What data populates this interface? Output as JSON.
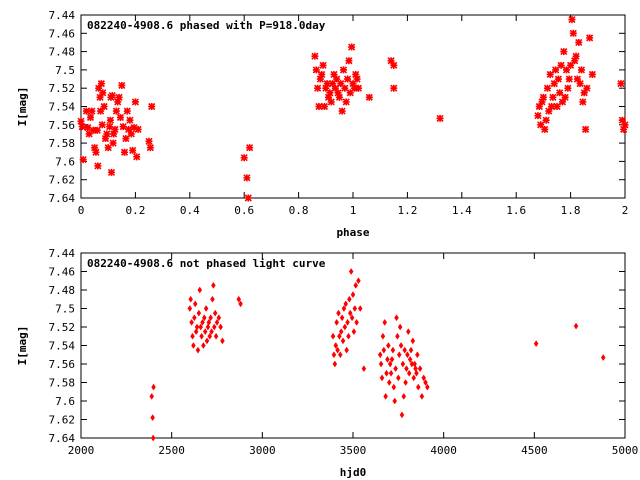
{
  "chart_data": [
    {
      "type": "scatter",
      "title": "082240-4908.6 phased with P=918.0day",
      "xlabel": "phase",
      "ylabel": "I[mag]",
      "xlim": [
        0,
        2
      ],
      "ylim": [
        7.64,
        7.44
      ],
      "y_inverted": true,
      "xticks": [
        "0",
        "0.2",
        "0.4",
        "0.6",
        "0.8",
        "1",
        "1.2",
        "1.4",
        "1.6",
        "1.8",
        "2"
      ],
      "yticks": [
        "7.44",
        "7.46",
        "7.48",
        "7.5",
        "7.52",
        "7.54",
        "7.56",
        "7.58",
        "7.6",
        "7.62",
        "7.64"
      ],
      "grid": false,
      "legend": "none",
      "marker": "cross",
      "color": "#ff0000",
      "points": [
        [
          0.0,
          7.556
        ],
        [
          0.004,
          7.562
        ],
        [
          0.008,
          7.598
        ],
        [
          0.02,
          7.545
        ],
        [
          0.025,
          7.563
        ],
        [
          0.03,
          7.57
        ],
        [
          0.035,
          7.552
        ],
        [
          0.04,
          7.545
        ],
        [
          0.045,
          7.566
        ],
        [
          0.05,
          7.585
        ],
        [
          0.055,
          7.59
        ],
        [
          0.06,
          7.566
        ],
        [
          0.062,
          7.605
        ],
        [
          0.065,
          7.52
        ],
        [
          0.07,
          7.53
        ],
        [
          0.072,
          7.545
        ],
        [
          0.075,
          7.515
        ],
        [
          0.078,
          7.56
        ],
        [
          0.08,
          7.525
        ],
        [
          0.085,
          7.54
        ],
        [
          0.09,
          7.575
        ],
        [
          0.095,
          7.57
        ],
        [
          0.1,
          7.585
        ],
        [
          0.105,
          7.562
        ],
        [
          0.108,
          7.555
        ],
        [
          0.11,
          7.53
        ],
        [
          0.115,
          7.528
        ],
        [
          0.118,
          7.58
        ],
        [
          0.12,
          7.57
        ],
        [
          0.125,
          7.565
        ],
        [
          0.13,
          7.545
        ],
        [
          0.135,
          7.535
        ],
        [
          0.14,
          7.53
        ],
        [
          0.145,
          7.552
        ],
        [
          0.15,
          7.517
        ],
        [
          0.155,
          7.562
        ],
        [
          0.16,
          7.59
        ],
        [
          0.165,
          7.575
        ],
        [
          0.17,
          7.545
        ],
        [
          0.175,
          7.565
        ],
        [
          0.18,
          7.555
        ],
        [
          0.185,
          7.57
        ],
        [
          0.19,
          7.588
        ],
        [
          0.195,
          7.563
        ],
        [
          0.2,
          7.535
        ],
        [
          0.205,
          7.595
        ],
        [
          0.21,
          7.565
        ],
        [
          0.25,
          7.578
        ],
        [
          0.255,
          7.585
        ],
        [
          0.26,
          7.54
        ],
        [
          0.112,
          7.612
        ],
        [
          0.6,
          7.596
        ],
        [
          0.61,
          7.618
        ],
        [
          0.615,
          7.64
        ],
        [
          0.62,
          7.585
        ],
        [
          0.86,
          7.485
        ],
        [
          0.865,
          7.5
        ],
        [
          0.87,
          7.52
        ],
        [
          0.875,
          7.54
        ],
        [
          0.88,
          7.51
        ],
        [
          0.885,
          7.505
        ],
        [
          0.89,
          7.495
        ],
        [
          0.895,
          7.54
        ],
        [
          0.9,
          7.52
        ],
        [
          0.905,
          7.515
        ],
        [
          0.91,
          7.53
        ],
        [
          0.915,
          7.525
        ],
        [
          0.92,
          7.535
        ],
        [
          0.925,
          7.515
        ],
        [
          0.93,
          7.505
        ],
        [
          0.935,
          7.52
        ],
        [
          0.94,
          7.51
        ],
        [
          0.945,
          7.525
        ],
        [
          0.95,
          7.53
        ],
        [
          0.955,
          7.515
        ],
        [
          0.96,
          7.545
        ],
        [
          0.965,
          7.5
        ],
        [
          0.97,
          7.52
        ],
        [
          0.975,
          7.535
        ],
        [
          0.98,
          7.51
        ],
        [
          0.985,
          7.49
        ],
        [
          0.99,
          7.525
        ],
        [
          0.995,
          7.475
        ],
        [
          1.0,
          7.515
        ],
        [
          1.005,
          7.52
        ],
        [
          1.01,
          7.505
        ],
        [
          1.015,
          7.51
        ],
        [
          1.02,
          7.52
        ],
        [
          1.06,
          7.53
        ],
        [
          1.14,
          7.49
        ],
        [
          1.15,
          7.495
        ],
        [
          1.15,
          7.52
        ],
        [
          1.32,
          7.553
        ],
        [
          1.68,
          7.55
        ],
        [
          1.685,
          7.54
        ],
        [
          1.69,
          7.56
        ],
        [
          1.695,
          7.535
        ],
        [
          1.7,
          7.53
        ],
        [
          1.705,
          7.565
        ],
        [
          1.71,
          7.555
        ],
        [
          1.715,
          7.52
        ],
        [
          1.72,
          7.545
        ],
        [
          1.725,
          7.505
        ],
        [
          1.73,
          7.54
        ],
        [
          1.735,
          7.53
        ],
        [
          1.74,
          7.515
        ],
        [
          1.745,
          7.5
        ],
        [
          1.75,
          7.54
        ],
        [
          1.755,
          7.51
        ],
        [
          1.76,
          7.525
        ],
        [
          1.765,
          7.495
        ],
        [
          1.77,
          7.535
        ],
        [
          1.775,
          7.48
        ],
        [
          1.78,
          7.53
        ],
        [
          1.785,
          7.5
        ],
        [
          1.79,
          7.52
        ],
        [
          1.795,
          7.51
        ],
        [
          1.8,
          7.495
        ],
        [
          1.805,
          7.445
        ],
        [
          1.81,
          7.46
        ],
        [
          1.815,
          7.49
        ],
        [
          1.82,
          7.485
        ],
        [
          1.825,
          7.51
        ],
        [
          1.83,
          7.47
        ],
        [
          1.835,
          7.515
        ],
        [
          1.84,
          7.5
        ],
        [
          1.845,
          7.535
        ],
        [
          1.85,
          7.525
        ],
        [
          1.855,
          7.565
        ],
        [
          1.86,
          7.52
        ],
        [
          1.87,
          7.465
        ],
        [
          1.88,
          7.505
        ],
        [
          1.985,
          7.515
        ],
        [
          1.99,
          7.555
        ],
        [
          1.995,
          7.565
        ],
        [
          2.0,
          7.56
        ]
      ]
    },
    {
      "type": "scatter",
      "title": "082240-4908.6 not phased light curve",
      "xlabel": "hjd0",
      "ylabel": "I[mag]",
      "xlim": [
        2000,
        5000
      ],
      "ylim": [
        7.64,
        7.44
      ],
      "y_inverted": true,
      "xticks": [
        "2000",
        "2500",
        "3000",
        "3500",
        "4000",
        "4500",
        "5000"
      ],
      "yticks": [
        "7.44",
        "7.46",
        "7.48",
        "7.5",
        "7.52",
        "7.54",
        "7.56",
        "7.58",
        "7.6",
        "7.62",
        "7.64"
      ],
      "grid": false,
      "legend": "none",
      "marker": "diamond",
      "color": "#ff0000",
      "points": [
        [
          2390,
          7.595
        ],
        [
          2395,
          7.618
        ],
        [
          2398,
          7.64
        ],
        [
          2400,
          7.585
        ],
        [
          2600,
          7.5
        ],
        [
          2605,
          7.49
        ],
        [
          2610,
          7.515
        ],
        [
          2615,
          7.53
        ],
        [
          2620,
          7.54
        ],
        [
          2625,
          7.51
        ],
        [
          2630,
          7.495
        ],
        [
          2635,
          7.525
        ],
        [
          2640,
          7.52
        ],
        [
          2645,
          7.545
        ],
        [
          2650,
          7.505
        ],
        [
          2655,
          7.48
        ],
        [
          2660,
          7.52
        ],
        [
          2665,
          7.53
        ],
        [
          2670,
          7.515
        ],
        [
          2675,
          7.54
        ],
        [
          2680,
          7.51
        ],
        [
          2685,
          7.525
        ],
        [
          2690,
          7.5
        ],
        [
          2695,
          7.535
        ],
        [
          2700,
          7.52
        ],
        [
          2705,
          7.515
        ],
        [
          2710,
          7.53
        ],
        [
          2715,
          7.51
        ],
        [
          2720,
          7.525
        ],
        [
          2725,
          7.49
        ],
        [
          2730,
          7.475
        ],
        [
          2735,
          7.52
        ],
        [
          2740,
          7.505
        ],
        [
          2745,
          7.53
        ],
        [
          2750,
          7.515
        ],
        [
          2760,
          7.51
        ],
        [
          2770,
          7.52
        ],
        [
          2780,
          7.535
        ],
        [
          2870,
          7.49
        ],
        [
          2880,
          7.495
        ],
        [
          3390,
          7.53
        ],
        [
          3395,
          7.55
        ],
        [
          3400,
          7.56
        ],
        [
          3405,
          7.54
        ],
        [
          3410,
          7.515
        ],
        [
          3415,
          7.545
        ],
        [
          3420,
          7.505
        ],
        [
          3425,
          7.53
        ],
        [
          3430,
          7.55
        ],
        [
          3435,
          7.525
        ],
        [
          3440,
          7.51
        ],
        [
          3445,
          7.535
        ],
        [
          3450,
          7.5
        ],
        [
          3455,
          7.52
        ],
        [
          3460,
          7.495
        ],
        [
          3465,
          7.545
        ],
        [
          3470,
          7.515
        ],
        [
          3475,
          7.53
        ],
        [
          3480,
          7.49
        ],
        [
          3485,
          7.505
        ],
        [
          3490,
          7.46
        ],
        [
          3495,
          7.51
        ],
        [
          3500,
          7.485
        ],
        [
          3505,
          7.525
        ],
        [
          3510,
          7.5
        ],
        [
          3515,
          7.475
        ],
        [
          3520,
          7.515
        ],
        [
          3530,
          7.47
        ],
        [
          3540,
          7.5
        ],
        [
          3560,
          7.565
        ],
        [
          3650,
          7.55
        ],
        [
          3655,
          7.56
        ],
        [
          3660,
          7.575
        ],
        [
          3665,
          7.53
        ],
        [
          3670,
          7.545
        ],
        [
          3675,
          7.515
        ],
        [
          3680,
          7.595
        ],
        [
          3685,
          7.57
        ],
        [
          3690,
          7.555
        ],
        [
          3695,
          7.54
        ],
        [
          3700,
          7.58
        ],
        [
          3705,
          7.56
        ],
        [
          3710,
          7.57
        ],
        [
          3715,
          7.555
        ],
        [
          3720,
          7.545
        ],
        [
          3725,
          7.585
        ],
        [
          3730,
          7.6
        ],
        [
          3735,
          7.565
        ],
        [
          3740,
          7.51
        ],
        [
          3745,
          7.53
        ],
        [
          3750,
          7.575
        ],
        [
          3755,
          7.55
        ],
        [
          3760,
          7.52
        ],
        [
          3765,
          7.54
        ],
        [
          3770,
          7.615
        ],
        [
          3775,
          7.56
        ],
        [
          3780,
          7.595
        ],
        [
          3785,
          7.545
        ],
        [
          3790,
          7.58
        ],
        [
          3795,
          7.565
        ],
        [
          3800,
          7.55
        ],
        [
          3805,
          7.525
        ],
        [
          3810,
          7.57
        ],
        [
          3815,
          7.555
        ],
        [
          3820,
          7.545
        ],
        [
          3825,
          7.56
        ],
        [
          3830,
          7.535
        ],
        [
          3835,
          7.575
        ],
        [
          3840,
          7.56
        ],
        [
          3845,
          7.565
        ],
        [
          3850,
          7.57
        ],
        [
          3855,
          7.55
        ],
        [
          3860,
          7.585
        ],
        [
          3870,
          7.565
        ],
        [
          3880,
          7.595
        ],
        [
          3890,
          7.575
        ],
        [
          3900,
          7.58
        ],
        [
          3910,
          7.585
        ],
        [
          4510,
          7.538
        ],
        [
          4730,
          7.519
        ],
        [
          4880,
          7.553
        ]
      ]
    }
  ]
}
